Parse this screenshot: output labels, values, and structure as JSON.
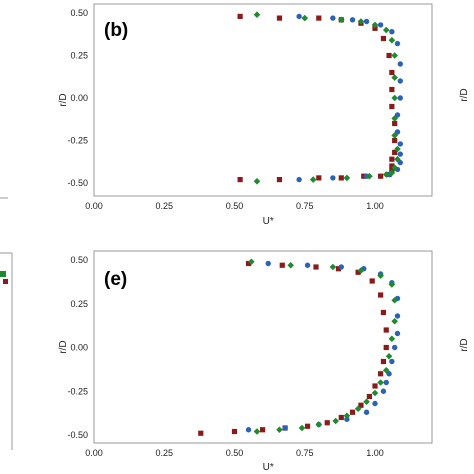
{
  "chart_data": [
    {
      "type": "scatter",
      "panel_label": "(b)",
      "xlabel": "U*",
      "ylabel": "r/D",
      "xlim": [
        0.0,
        1.2
      ],
      "ylim": [
        -0.55,
        0.55
      ],
      "xticks": [
        "0.00",
        "0.25",
        "0.50",
        "0.75",
        "1.00"
      ],
      "xtick_values": [
        0.0,
        0.25,
        0.5,
        0.75,
        1.0
      ],
      "yticks": [
        "0.50",
        "0.25",
        "0.00",
        "-0.25",
        "-0.50"
      ],
      "ytick_values": [
        0.5,
        0.25,
        0.0,
        -0.25,
        -0.5
      ],
      "series": [
        {
          "marker": "square",
          "color": "#8b1a1a",
          "x": [
            0.52,
            0.66,
            0.8,
            0.88,
            0.95,
            1.0,
            1.03,
            1.05,
            1.06,
            1.06,
            1.06,
            1.07,
            1.07,
            1.07,
            1.06,
            1.06,
            1.06,
            1.05,
            1.02,
            0.96,
            0.88,
            0.8,
            0.66,
            0.52
          ],
          "y": [
            0.48,
            0.47,
            0.47,
            0.46,
            0.44,
            0.41,
            0.35,
            0.25,
            0.15,
            0.05,
            -0.05,
            -0.15,
            -0.25,
            -0.32,
            -0.36,
            -0.4,
            -0.43,
            -0.45,
            -0.46,
            -0.46,
            -0.47,
            -0.47,
            -0.48,
            -0.48
          ]
        },
        {
          "marker": "circle",
          "color": "#2a62b8",
          "x": [
            0.73,
            0.85,
            0.92,
            0.97,
            1.02,
            1.06,
            1.08,
            1.09,
            1.09,
            1.09,
            1.08,
            1.08,
            1.09,
            1.09,
            1.09,
            1.08,
            1.05,
            0.97,
            0.85,
            0.73
          ],
          "y": [
            0.48,
            0.47,
            0.46,
            0.45,
            0.43,
            0.39,
            0.32,
            0.2,
            0.1,
            0.0,
            -0.1,
            -0.2,
            -0.27,
            -0.33,
            -0.38,
            -0.42,
            -0.45,
            -0.46,
            -0.47,
            -0.48
          ]
        },
        {
          "marker": "diamond",
          "color": "#1f8a2e",
          "x": [
            0.58,
            0.75,
            0.88,
            0.95,
            1.0,
            1.04,
            1.06,
            1.07,
            1.07,
            1.07,
            1.07,
            1.07,
            1.08,
            1.08,
            1.07,
            1.06,
            1.04,
            0.98,
            0.9,
            0.78,
            0.58
          ],
          "y": [
            0.49,
            0.47,
            0.46,
            0.45,
            0.43,
            0.4,
            0.34,
            0.25,
            0.12,
            0.0,
            -0.12,
            -0.22,
            -0.3,
            -0.36,
            -0.41,
            -0.44,
            -0.45,
            -0.46,
            -0.47,
            -0.48,
            -0.49
          ]
        }
      ]
    },
    {
      "type": "scatter",
      "panel_label": "(e)",
      "xlabel": "U*",
      "ylabel": "r/D",
      "xlim": [
        0.0,
        1.2
      ],
      "ylim": [
        -0.55,
        0.55
      ],
      "xticks": [
        "0.00",
        "0.25",
        "0.50",
        "0.75",
        "1.00"
      ],
      "xtick_values": [
        0.0,
        0.25,
        0.5,
        0.75,
        1.0
      ],
      "yticks": [
        "0.50",
        "0.25",
        "0.00",
        "-0.25",
        "-0.50"
      ],
      "ytick_values": [
        0.5,
        0.25,
        0.0,
        -0.25,
        -0.5
      ],
      "series": [
        {
          "marker": "square",
          "color": "#8b1a1a",
          "x": [
            0.55,
            0.67,
            0.79,
            0.87,
            0.94,
            0.99,
            1.02,
            1.03,
            1.04,
            1.04,
            1.03,
            1.02,
            1.0,
            0.98,
            0.95,
            0.92,
            0.88,
            0.83,
            0.76,
            0.68,
            0.6,
            0.5,
            0.38
          ],
          "y": [
            0.48,
            0.47,
            0.46,
            0.45,
            0.43,
            0.38,
            0.3,
            0.2,
            0.1,
            0.0,
            -0.08,
            -0.15,
            -0.22,
            -0.28,
            -0.33,
            -0.37,
            -0.4,
            -0.43,
            -0.45,
            -0.46,
            -0.47,
            -0.48,
            -0.49
          ]
        },
        {
          "marker": "circle",
          "color": "#2a62b8",
          "x": [
            0.62,
            0.76,
            0.88,
            0.96,
            1.02,
            1.06,
            1.08,
            1.08,
            1.08,
            1.07,
            1.06,
            1.05,
            1.04,
            1.03,
            1.0,
            0.97,
            0.9,
            0.8,
            0.68,
            0.55
          ],
          "y": [
            0.48,
            0.47,
            0.46,
            0.45,
            0.42,
            0.37,
            0.28,
            0.18,
            0.08,
            0.0,
            -0.08,
            -0.15,
            -0.2,
            -0.25,
            -0.32,
            -0.37,
            -0.41,
            -0.44,
            -0.46,
            -0.47
          ]
        },
        {
          "marker": "diamond",
          "color": "#1f8a2e",
          "x": [
            0.56,
            0.7,
            0.85,
            0.95,
            1.02,
            1.06,
            1.07,
            1.07,
            1.06,
            1.05,
            1.04,
            1.02,
            1.0,
            0.97,
            0.94,
            0.9,
            0.86,
            0.8,
            0.74,
            0.66,
            0.58
          ],
          "y": [
            0.49,
            0.47,
            0.46,
            0.44,
            0.41,
            0.36,
            0.27,
            0.15,
            0.05,
            -0.05,
            -0.13,
            -0.2,
            -0.26,
            -0.31,
            -0.35,
            -0.39,
            -0.42,
            -0.44,
            -0.46,
            -0.47,
            -0.48
          ]
        }
      ]
    }
  ]
}
